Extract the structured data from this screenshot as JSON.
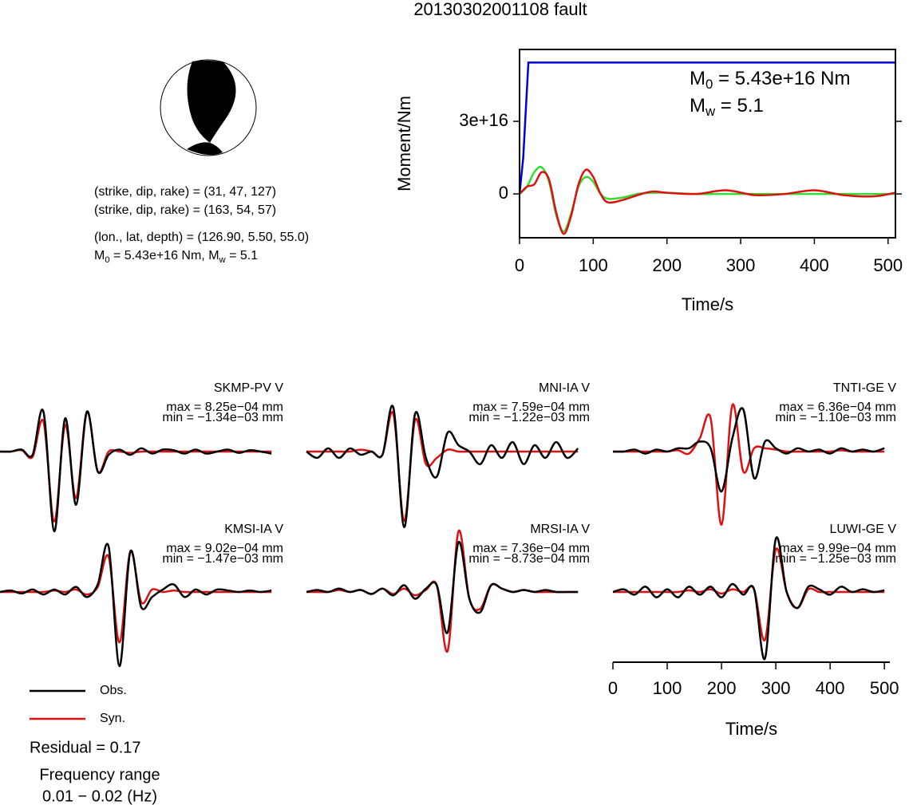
{
  "title": "20130302001108 fault",
  "mechanism": {
    "lines": [
      "(strike, dip, rake) = (31, 47, 127)",
      "(strike, dip, rake) = (163, 54, 57)",
      "(lon., lat, depth) = (126.90, 5.50, 55.0)"
    ],
    "moment_line": [
      "M",
      "0",
      " = 5.43e+16 Nm, M",
      "w",
      " = 5.1"
    ]
  },
  "chart_data": [
    {
      "type": "line",
      "ylabel": "Moment/Nm",
      "xlabel": "Time/s",
      "xlim": [
        0,
        510
      ],
      "ylim": [
        -1.81e+16,
        5.97e+16
      ],
      "xticks": [
        0,
        100,
        200,
        300,
        400,
        500
      ],
      "yticks": [
        0,
        {
          "value": 3e+16,
          "label": "3e+16"
        }
      ],
      "annotations": [
        [
          "M",
          "0",
          " = 5.43e+16 Nm"
        ],
        [
          "M",
          "w",
          " = 5.1"
        ]
      ],
      "series": [
        {
          "color": "#0000dd",
          "x": [
            0,
            5,
            12,
            510
          ],
          "values": [
            0,
            1.5e+16,
            5.43e+16,
            5.43e+16
          ]
        },
        {
          "color": "#33dd33",
          "x": [
            0,
            10,
            20,
            30,
            40,
            50,
            60,
            70,
            80,
            90,
            100,
            110,
            120,
            140,
            160,
            180,
            200,
            240,
            280,
            320,
            360,
            400,
            440,
            480,
            510
          ],
          "values": [
            0,
            3000000000000000.0,
            9000000000000000.0,
            1.1e+16,
            5000000000000000.0,
            -9000000000000000.0,
            -1.55e+16,
            -8000000000000000.0,
            3000000000000000.0,
            7000000000000000.0,
            5000000000000000.0,
            0,
            -2000000000000000.0,
            -1500000000000000.0,
            0,
            500000000000000.0,
            500000000000000.0,
            0,
            0,
            0,
            0,
            0,
            0,
            0,
            0
          ]
        },
        {
          "color": "#dd1111",
          "x": [
            0,
            10,
            20,
            30,
            40,
            50,
            60,
            70,
            80,
            90,
            100,
            110,
            120,
            140,
            160,
            180,
            200,
            240,
            280,
            320,
            360,
            400,
            440,
            480,
            510
          ],
          "values": [
            0,
            3000000000000000.0,
            4000000000000000.0,
            9000000000000000.0,
            6000000000000000.0,
            -8000000000000000.0,
            -1.65e+16,
            -9000000000000000.0,
            4000000000000000.0,
            1e+16,
            7000000000000000.0,
            0,
            -3500000000000000.0,
            -2500000000000000.0,
            -500000000000000.0,
            1000000000000000.0,
            500000000000000.0,
            0,
            1500000000000000.0,
            -500000000000000.0,
            0,
            1500000000000000.0,
            -500000000000000.0,
            -1000000000000000.0,
            500000000000000.0
          ]
        }
      ]
    },
    {
      "type": "waveform",
      "xlabel": "Time/s",
      "xlim": [
        0,
        510
      ],
      "xticks": [
        0,
        100,
        200,
        300,
        400,
        500
      ],
      "x": [
        0,
        20,
        40,
        60,
        80,
        100,
        120,
        140,
        160,
        180,
        200,
        220,
        240,
        260,
        280,
        300,
        320,
        340,
        360,
        380,
        400,
        420,
        440,
        460,
        480,
        500
      ],
      "panels": [
        {
          "name": "SKMP-PV V",
          "max_label": "max = 8.25e−04 mm",
          "min_label": "min = −1.34e−03 mm",
          "series": [
            {
              "name": "Obs.",
              "color": "#000000",
              "values": [
                0,
                0,
                3e-05,
                -5e-05,
                0.0006,
                -0.0012,
                0.0005,
                -0.0008,
                0.0006,
                -0.0003,
                -5e-05,
                3e-05,
                -5e-05,
                5e-05,
                -3e-05,
                3e-05,
                2e-05,
                -3e-05,
                3e-05,
                -3e-05,
                0,
                3e-05,
                -2e-05,
                2e-05,
                0,
                -3e-05
              ]
            },
            {
              "name": "Syn.",
              "color": "#dd1111",
              "values": [
                0,
                0,
                2e-05,
                -8e-05,
                0.00045,
                -0.00105,
                0.0004,
                -0.0007,
                0.0006,
                -0.0003,
                0,
                0,
                -2e-05,
                0,
                0,
                0,
                0,
                0,
                0,
                0,
                0,
                0,
                0,
                0,
                0,
                0
              ]
            }
          ]
        },
        {
          "name": "MNI-IA V",
          "max_label": "max = 7.59e−04 mm",
          "min_label": "min = −1.22e−03 mm",
          "series": [
            {
              "name": "Obs.",
              "color": "#000000",
              "values": [
                0,
                -0.0001,
                5e-05,
                -0.0001,
                5e-05,
                -5e-05,
                0,
                -5e-05,
                0.0007,
                -0.0012,
                0.0006,
                -0.0001,
                -0.0004,
                0.0003,
                0.0001,
                0,
                -0.0002,
                0.0001,
                -0.0001,
                0.00015,
                -0.0002,
                0.0001,
                -0.0001,
                0.00015,
                -0.0001,
                5e-05
              ]
            },
            {
              "name": "Syn.",
              "color": "#dd1111",
              "values": [
                0,
                0,
                0,
                0,
                0,
                3e-05,
                0,
                -5e-05,
                0.0006,
                -0.0011,
                0.0005,
                -0.0002,
                -0.0001,
                3e-05,
                0,
                0,
                0,
                0,
                0,
                0,
                0,
                0,
                0,
                0,
                0,
                0
              ]
            }
          ]
        },
        {
          "name": "TNTI-GE V",
          "max_label": "max = 6.36e−04 mm",
          "min_label": "min = −1.10e−03 mm",
          "series": [
            {
              "name": "Obs.",
              "color": "#000000",
              "values": [
                0,
                0,
                3e-05,
                -3e-05,
                3e-05,
                0,
                5e-05,
                5e-05,
                0.00015,
                5e-05,
                -0.0006,
                0.0002,
                0.000636,
                -0.0004,
                0.00015,
                5e-05,
                -3e-05,
                5e-05,
                0,
                3e-05,
                -3e-05,
                5e-05,
                0,
                3e-05,
                0,
                5e-05
              ]
            },
            {
              "name": "Syn.",
              "color": "#dd1111",
              "values": [
                0,
                0,
                0,
                0,
                0,
                0,
                2e-05,
                -3e-05,
                0.0002,
                0.0005,
                -0.0011,
                0.0007,
                -0.0003,
                5e-05,
                5e-05,
                3e-05,
                0,
                0,
                0,
                0,
                0,
                2e-05,
                0,
                0,
                0,
                0
              ]
            }
          ]
        },
        {
          "name": "KMSI-IA V",
          "max_label": "max = 9.02e−04 mm",
          "min_label": "min = −1.47e−03 mm",
          "series": [
            {
              "name": "Obs.",
              "color": "#000000",
              "values": [
                0,
                3e-05,
                -3e-05,
                5e-05,
                -5e-05,
                5e-05,
                -5e-05,
                0.0001,
                -0.0001,
                0.00015,
                0.000902,
                -0.00147,
                0.0008,
                -0.0003,
                -0.0001,
                5e-05,
                0.00015,
                -0.0001,
                5e-05,
                -5e-05,
                5e-05,
                3e-05,
                0,
                3e-05,
                0,
                3e-05
              ]
            },
            {
              "name": "Syn.",
              "color": "#dd1111",
              "values": [
                0,
                0,
                0,
                0,
                0,
                3e-05,
                0,
                5e-05,
                -5e-05,
                0.0001,
                0.0007,
                -0.001,
                0.0008,
                -0.0002,
                5e-05,
                0,
                3e-05,
                0,
                0,
                0,
                0,
                0,
                0,
                0,
                0,
                0
              ]
            }
          ]
        },
        {
          "name": "MRSI-IA V",
          "max_label": "max = 7.36e−04 mm",
          "min_label": "min = −8.73e−04 mm",
          "series": [
            {
              "name": "Obs.",
              "color": "#000000",
              "values": [
                0,
                3e-05,
                0,
                5e-05,
                0,
                3e-05,
                -3e-05,
                5e-05,
                -5e-05,
                0.0001,
                -0.0001,
                5e-05,
                0.0001,
                -0.0006,
                0.000736,
                -0.0001,
                -0.0003,
                0.0001,
                5e-05,
                0,
                3e-05,
                0,
                3e-05,
                0,
                0,
                0
              ]
            },
            {
              "name": "Syn.",
              "color": "#dd1111",
              "values": [
                0,
                0,
                0,
                3e-05,
                0,
                3e-05,
                -3e-05,
                5e-05,
                -3e-05,
                5e-05,
                -5e-05,
                3e-05,
                0.0001,
                -0.000873,
                0.0009,
                -0.0001,
                -0.00025,
                0.0001,
                5e-05,
                0,
                3e-05,
                0,
                0,
                0,
                0,
                0
              ]
            }
          ]
        },
        {
          "name": "LUWI-GE V",
          "max_label": "max = 9.99e−04 mm",
          "min_label": "min = −1.25e−03 mm",
          "series": [
            {
              "name": "Obs.",
              "color": "#000000",
              "values": [
                0,
                5e-05,
                -5e-05,
                0.0001,
                -0.0001,
                5e-05,
                -0.0001,
                0.0001,
                -5e-05,
                0.0001,
                -0.0001,
                0.00015,
                -5e-05,
                5e-05,
                -0.00125,
                0.000999,
                0,
                -0.0003,
                0.0001,
                5e-05,
                -5e-05,
                0.0001,
                0,
                5e-05,
                0,
                3e-05
              ]
            },
            {
              "name": "Syn.",
              "color": "#dd1111",
              "values": [
                0,
                0,
                0,
                0,
                0,
                0,
                0,
                3e-05,
                0,
                5e-05,
                -3e-05,
                5e-05,
                0,
                5e-05,
                -0.0009,
                0.0008,
                0,
                -0.0003,
                5e-05,
                0,
                0,
                0,
                0,
                0,
                0,
                0
              ]
            }
          ]
        }
      ]
    }
  ],
  "residual": "Residual = 0.17",
  "frequency": [
    "Frequency range",
    "0.01 − 0.02 (Hz)"
  ]
}
